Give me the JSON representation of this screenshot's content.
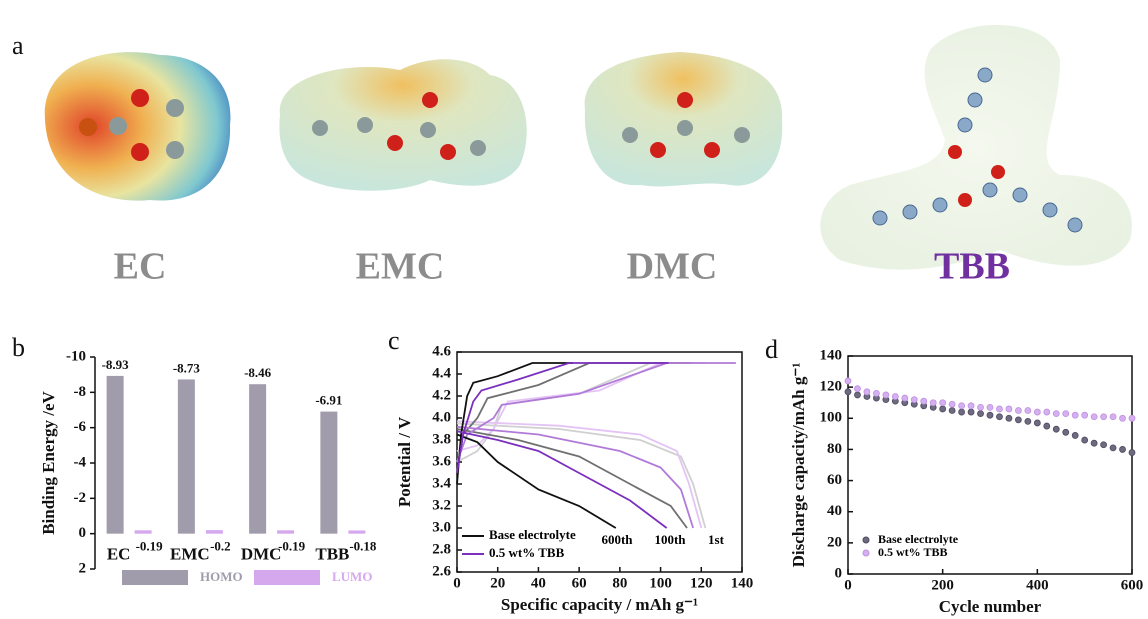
{
  "panel_labels": [
    "a",
    "b",
    "c",
    "d"
  ],
  "molecules": [
    {
      "label": "EC",
      "color": "#8c8c8c"
    },
    {
      "label": "EMC",
      "color": "#8c8c8c"
    },
    {
      "label": "DMC",
      "color": "#8c8c8c"
    },
    {
      "label": "TBB",
      "color": "#7030a0"
    }
  ],
  "chart_data": [
    {
      "type": "bar",
      "y_label": "Binding Energy /eV",
      "categories": [
        "EC",
        "EMC",
        "DMC",
        "TBB"
      ],
      "series": [
        {
          "name": "HOMO",
          "color": "#a19cab",
          "label_color": "#a19cab",
          "values": [
            -8.93,
            -8.73,
            -8.46,
            -6.91
          ]
        },
        {
          "name": "LUMO",
          "color": "#d5a8ee",
          "label_color": "#d5a8ee",
          "values": [
            -0.19,
            -0.2,
            -0.19,
            -0.18
          ]
        }
      ],
      "value_label_color": "#2f5d50",
      "ylim": [
        -10,
        2
      ],
      "y_inverted": true,
      "yticks": [
        -10,
        -8,
        -6,
        -4,
        -2,
        0,
        2
      ],
      "legend_position": "bottom"
    },
    {
      "type": "line",
      "x_label": "Specific capacity / mAh g⁻¹",
      "y_label": "Potential / V",
      "xlim": [
        0,
        140
      ],
      "xticks": [
        0,
        20,
        40,
        60,
        80,
        100,
        120,
        140
      ],
      "ylim": [
        2.6,
        4.6
      ],
      "yticks": [
        2.6,
        2.8,
        {
          "value": 3,
          "label": "3.0"
        },
        3.2,
        3.4,
        3.6,
        3.8,
        {
          "value": 4,
          "label": "4.0"
        },
        4.2,
        4.4,
        4.6
      ],
      "series": [
        {
          "color": "#d0d0d0",
          "x": [
            0,
            10,
            18,
            22,
            60,
            95,
            122
          ],
          "values": [
            3.6,
            3.7,
            3.9,
            4.12,
            4.22,
            4.5,
            4.5
          ]
        },
        {
          "color": "#d0d0d0",
          "x": [
            0,
            50,
            90,
            110,
            116,
            122
          ],
          "values": [
            3.95,
            3.9,
            3.8,
            3.65,
            3.4,
            3.0
          ]
        },
        {
          "color": "#e3c4f5",
          "x": [
            0,
            10,
            18,
            25,
            70,
            100,
            120
          ],
          "values": [
            3.7,
            3.75,
            3.9,
            4.15,
            4.25,
            4.5,
            4.5
          ]
        },
        {
          "color": "#e3c4f5",
          "x": [
            0,
            50,
            90,
            108,
            114,
            120
          ],
          "values": [
            3.97,
            3.93,
            3.85,
            3.7,
            3.4,
            3.0
          ]
        },
        {
          "color": "#707070",
          "x": [
            0,
            3,
            10,
            15,
            40,
            65,
            115
          ],
          "values": [
            3.5,
            3.85,
            4.0,
            4.18,
            4.3,
            4.5,
            4.5
          ]
        },
        {
          "color": "#707070",
          "x": [
            0,
            30,
            60,
            85,
            105,
            113
          ],
          "values": [
            3.9,
            3.8,
            3.65,
            3.4,
            3.2,
            3.0
          ]
        },
        {
          "color": "#b27ad8",
          "x": [
            0,
            5,
            18,
            22,
            60,
            103,
            137
          ],
          "values": [
            3.6,
            3.85,
            4.0,
            4.12,
            4.22,
            4.5,
            4.5
          ]
        },
        {
          "color": "#b27ad8",
          "x": [
            0,
            40,
            80,
            100,
            110,
            116
          ],
          "values": [
            3.92,
            3.85,
            3.7,
            3.55,
            3.35,
            3.0
          ]
        },
        {
          "color": "#111111",
          "x": [
            0,
            2,
            5,
            8,
            20,
            37,
            57
          ],
          "values": [
            3.4,
            3.85,
            4.2,
            4.32,
            4.38,
            4.5,
            4.5
          ]
        },
        {
          "color": "#111111",
          "x": [
            0,
            10,
            20,
            40,
            60,
            78
          ],
          "values": [
            3.85,
            3.78,
            3.6,
            3.35,
            3.2,
            3.0
          ]
        },
        {
          "color": "#7b2fbe",
          "x": [
            0,
            3,
            8,
            12,
            30,
            55,
            104
          ],
          "values": [
            3.5,
            3.85,
            4.15,
            4.25,
            4.35,
            4.5,
            4.5
          ]
        },
        {
          "color": "#7b2fbe",
          "x": [
            0,
            20,
            40,
            60,
            85,
            103
          ],
          "values": [
            3.88,
            3.8,
            3.7,
            3.5,
            3.25,
            3.0
          ]
        }
      ],
      "legend": [
        {
          "name": "Base electrolyte",
          "color": "#111111"
        },
        {
          "name": "0.5 wt% TBB",
          "color": "#7b2fbe"
        }
      ],
      "legend_position": "lower left",
      "annotations": [
        "600th",
        "100th",
        "1st"
      ]
    },
    {
      "type": "scatter",
      "x_label": "Cycle number",
      "y_label": "Discharge capacity/mAh g⁻¹",
      "xlim": [
        0,
        600
      ],
      "xticks": [
        0,
        200,
        400,
        600
      ],
      "ylim": [
        0,
        140
      ],
      "yticks": [
        0,
        20,
        40,
        60,
        80,
        100,
        120,
        140
      ],
      "x": [
        0,
        20,
        40,
        60,
        80,
        100,
        120,
        140,
        160,
        180,
        200,
        220,
        240,
        260,
        280,
        300,
        320,
        340,
        360,
        380,
        400,
        420,
        440,
        460,
        480,
        500,
        520,
        540,
        560,
        580,
        600
      ],
      "series": [
        {
          "name": "Base electrolyte",
          "color": "#6e6a80",
          "values": [
            117,
            115,
            114,
            113,
            112,
            111,
            110,
            109,
            108,
            107,
            106,
            105,
            104,
            104,
            103,
            102,
            101,
            100,
            99,
            98,
            97,
            95,
            93,
            91,
            89,
            86,
            84,
            83,
            81,
            80,
            78
          ]
        },
        {
          "name": "0.5 wt% TBB",
          "color": "#d4b0f0",
          "values": [
            124,
            119,
            117,
            116,
            115,
            114,
            113,
            112,
            111,
            110,
            110,
            109,
            108,
            108,
            107,
            107,
            106,
            106,
            105,
            105,
            104,
            104,
            103,
            103,
            102,
            102,
            101,
            101,
            101,
            100,
            100
          ]
        }
      ],
      "legend_position": "lower left"
    }
  ]
}
